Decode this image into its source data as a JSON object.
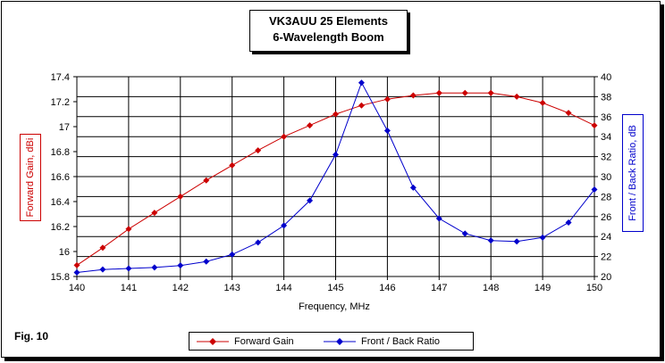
{
  "chart_data": {
    "type": "line",
    "title": "VK3AUU 25 Elements",
    "subtitle": "6-Wavelength Boom",
    "xlabel": "Frequency, MHz",
    "ylabel": "Forward Gain, dBi",
    "y2label": "Front / Back Ratio, dB",
    "xlim": [
      140,
      150
    ],
    "ylim": [
      15.8,
      17.4
    ],
    "y2lim": [
      20,
      40
    ],
    "x_ticks": [
      "140",
      "141",
      "142",
      "143",
      "144",
      "145",
      "146",
      "147",
      "148",
      "149",
      "150"
    ],
    "y_ticks": [
      "15.8",
      "16",
      "16.2",
      "16.4",
      "16.6",
      "16.8",
      "17",
      "17.2",
      "17.4"
    ],
    "y2_ticks": [
      "20",
      "22",
      "24",
      "26",
      "28",
      "30",
      "32",
      "34",
      "36",
      "38",
      "40"
    ],
    "x": [
      140,
      140.5,
      141,
      141.5,
      142,
      142.5,
      143,
      143.5,
      144,
      144.5,
      145,
      145.5,
      146,
      146.5,
      147,
      147.5,
      148,
      148.5,
      149,
      149.5,
      150
    ],
    "series": [
      {
        "name": "Forward Gain",
        "axis": "left",
        "color": "#cc0000",
        "values": [
          15.89,
          16.03,
          16.18,
          16.31,
          16.44,
          16.57,
          16.69,
          16.81,
          16.92,
          17.01,
          17.1,
          17.17,
          17.22,
          17.25,
          17.27,
          17.27,
          17.27,
          17.24,
          17.19,
          17.11,
          17.01
        ]
      },
      {
        "name": "Front / Back Ratio",
        "axis": "right",
        "color": "#0000cc",
        "values": [
          20.4,
          20.7,
          20.8,
          20.9,
          21.1,
          21.5,
          22.2,
          23.4,
          25.1,
          27.6,
          32.2,
          39.4,
          34.6,
          28.9,
          25.8,
          24.3,
          23.6,
          23.5,
          23.9,
          25.4,
          28.7
        ]
      }
    ],
    "legend": "bottom",
    "grid": true
  },
  "figure_label": "Fig. 10",
  "legend_labels": [
    "Forward Gain",
    "Front / Back Ratio"
  ]
}
